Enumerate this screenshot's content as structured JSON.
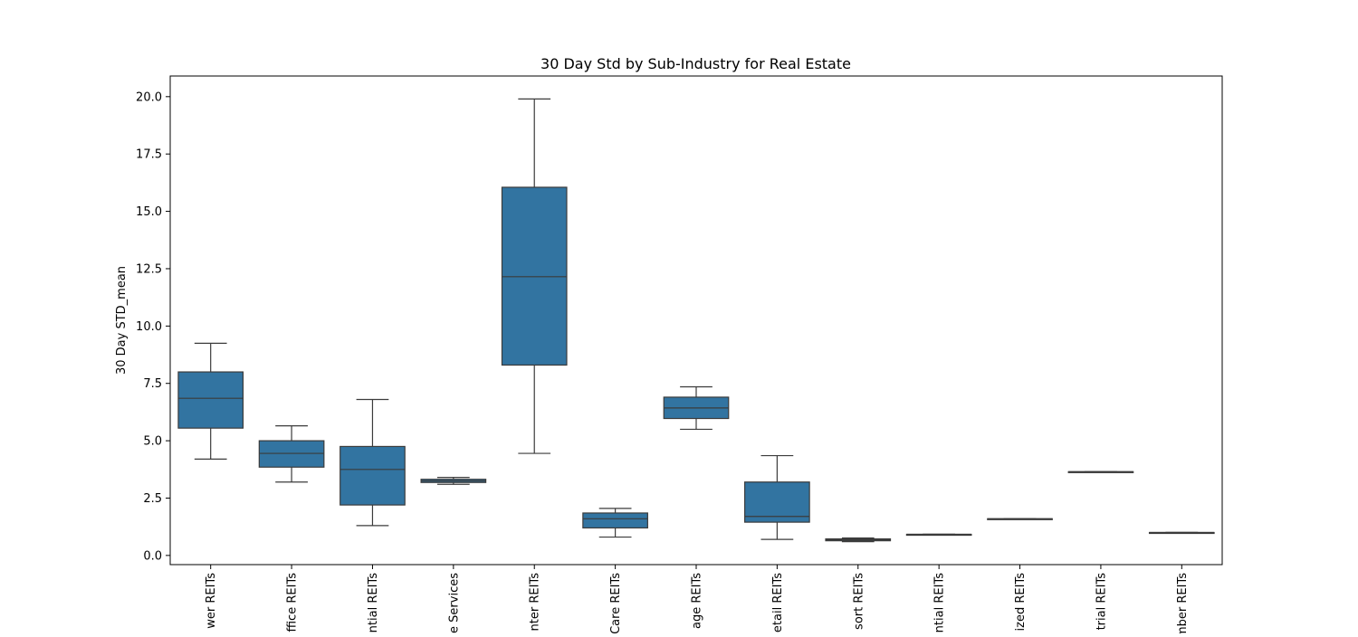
{
  "chart_data": {
    "type": "box",
    "title": "30 Day Std by Sub-Industry for Real Estate",
    "xlabel": "",
    "ylabel": "30 Day STD_mean",
    "ylim": [
      -0.4,
      20.9
    ],
    "y_ticks": [
      0.0,
      2.5,
      5.0,
      7.5,
      10.0,
      12.5,
      15.0,
      17.5,
      20.0
    ],
    "y_tick_labels": [
      "0.0",
      "2.5",
      "5.0",
      "7.5",
      "10.0",
      "12.5",
      "15.0",
      "17.5",
      "20.0"
    ],
    "grid": false,
    "box_color": "#3274a1",
    "edge_color": "#3b3b3b",
    "categories": [
      "wer REITs",
      "ffice REITs",
      "ntial REITs",
      "e Services",
      "nter REITs",
      "Care REITs",
      "age REITs",
      "etail REITs",
      "sort REITs",
      "ntial REITs",
      "ized REITs",
      "trial REITs",
      "mber REITs"
    ],
    "boxes": [
      {
        "whislo": 4.2,
        "q1": 5.55,
        "med": 6.85,
        "q3": 8.0,
        "whishi": 9.25
      },
      {
        "whislo": 3.2,
        "q1": 3.85,
        "med": 4.45,
        "q3": 5.0,
        "whishi": 5.65
      },
      {
        "whislo": 1.3,
        "q1": 2.2,
        "med": 3.75,
        "q3": 4.75,
        "whishi": 6.8
      },
      {
        "whislo": 3.1,
        "q1": 3.18,
        "med": 3.25,
        "q3": 3.32,
        "whishi": 3.4
      },
      {
        "whislo": 4.45,
        "q1": 8.3,
        "med": 12.15,
        "q3": 16.05,
        "whishi": 19.9
      },
      {
        "whislo": 0.8,
        "q1": 1.2,
        "med": 1.6,
        "q3": 1.85,
        "whishi": 2.05
      },
      {
        "whislo": 5.5,
        "q1": 5.97,
        "med": 6.43,
        "q3": 6.9,
        "whishi": 7.35
      },
      {
        "whislo": 0.7,
        "q1": 1.45,
        "med": 1.7,
        "q3": 3.2,
        "whishi": 4.35
      },
      {
        "whislo": 0.6,
        "q1": 0.64,
        "med": 0.68,
        "q3": 0.72,
        "whishi": 0.76
      },
      {
        "whislo": 0.92,
        "q1": 0.92,
        "med": 0.92,
        "q3": 0.92,
        "whishi": 0.92
      },
      {
        "whislo": 1.6,
        "q1": 1.6,
        "med": 1.6,
        "q3": 1.6,
        "whishi": 1.6
      },
      {
        "whislo": 3.65,
        "q1": 3.65,
        "med": 3.65,
        "q3": 3.65,
        "whishi": 3.65
      },
      {
        "whislo": 1.0,
        "q1": 1.0,
        "med": 1.0,
        "q3": 1.0,
        "whishi": 1.0
      }
    ]
  }
}
